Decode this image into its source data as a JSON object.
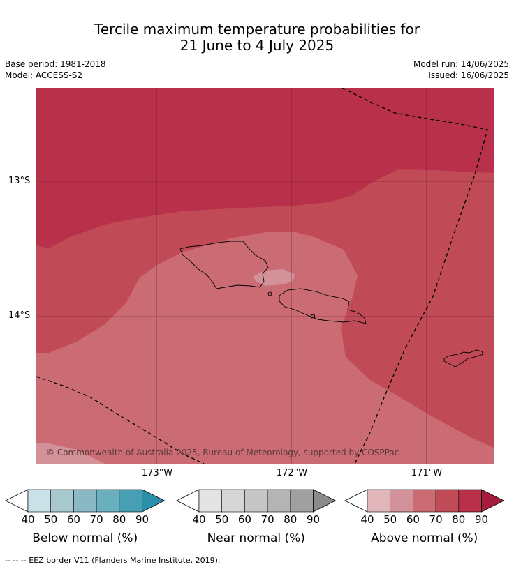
{
  "title": {
    "line1": "Tercile maximum temperature probabilities for",
    "line2": "21 June to 4 July 2025"
  },
  "meta": {
    "base_period": "Base period: 1981-2018",
    "model": "Model: ACCESS-S2",
    "model_run": "Model run: 14/06/2025",
    "issued": "Issued: 16/06/2025"
  },
  "map": {
    "lat_labels": [
      "13°S",
      "14°S"
    ],
    "lon_labels": [
      "173°W",
      "172°W",
      "171°W"
    ],
    "copyright": "© Commonwealth of Australia 2025, Bureau of Meteorology, supported by COSPPac",
    "colors": {
      "above_40_50": "#e0b6bb",
      "above_50_60": "#d39199",
      "above_60_70": "#cb6c75",
      "above_70_80": "#c04a56",
      "above_80_90": "#b8304a",
      "above_90": "#a51c3c",
      "grid": "#6a2030",
      "coast": "#000000"
    }
  },
  "colorbars": [
    {
      "label": "Below normal (%)",
      "ticks": [
        "40",
        "50",
        "60",
        "70",
        "80",
        "90"
      ],
      "colors": [
        "#c9e1e7",
        "#a7c8cf",
        "#8ab8c4",
        "#6aafbd",
        "#479fb3",
        "#2a8fa8"
      ]
    },
    {
      "label": "Near normal (%)",
      "ticks": [
        "40",
        "50",
        "60",
        "70",
        "80",
        "90"
      ],
      "colors": [
        "#e4e4e4",
        "#d6d6d6",
        "#c6c6c6",
        "#b4b4b4",
        "#a0a0a0",
        "#8a8a8a"
      ]
    },
    {
      "label": "Above normal (%)",
      "ticks": [
        "40",
        "50",
        "60",
        "70",
        "80",
        "90"
      ],
      "colors": [
        "#e0b6bb",
        "#d39199",
        "#cb6c75",
        "#c04a56",
        "#b8304a",
        "#a51c3c"
      ]
    }
  ],
  "footnote": "--  --  -- EEZ border V11 (Flanders Marine Institute, 2019)."
}
